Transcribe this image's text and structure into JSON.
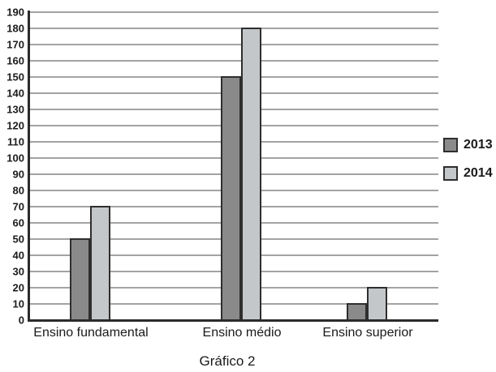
{
  "chart_data": {
    "type": "bar",
    "title": "Gráfico 2",
    "categories": [
      "Ensino fundamental",
      "Ensino médio",
      "Ensino superior"
    ],
    "series": [
      {
        "name": "2013",
        "color": "#8a8a8a",
        "values": [
          50,
          150,
          10
        ]
      },
      {
        "name": "2014",
        "color": "#c4c7ca",
        "values": [
          70,
          180,
          20
        ]
      }
    ],
    "ylim": [
      0,
      190
    ],
    "ytick_step": 10,
    "grid": true,
    "legend_position": "right",
    "xlabel": "",
    "ylabel": ""
  },
  "colors": {
    "axis": "#2b2b2b",
    "gridline": "#a3a3a3",
    "bar_border": "#2e2e2e",
    "text": "#1a1a1a",
    "background": "#ffffff"
  }
}
